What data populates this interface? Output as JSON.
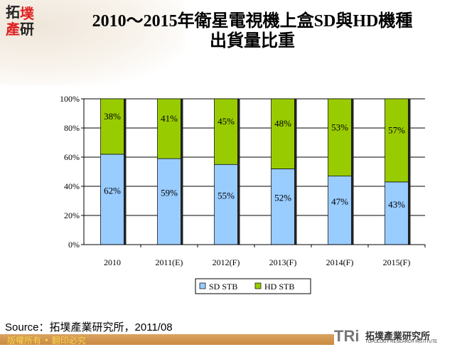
{
  "header": {
    "title_line1": "2010～2015年衛星電視機上盒SD與HD機種",
    "title_line2": "出貨量比重",
    "logo_text": "拓墣產研"
  },
  "chart_data": {
    "type": "bar",
    "stacked": true,
    "percent": true,
    "categories": [
      "2010",
      "2011(E)",
      "2012(F)",
      "2013(F)",
      "2014(F)",
      "2015(F)"
    ],
    "series": [
      {
        "name": "SD STB",
        "values": [
          62,
          59,
          55,
          52,
          47,
          43
        ],
        "labels": [
          "62%",
          "59%",
          "55%",
          "52%",
          "47%",
          "43%"
        ],
        "color": "#99ccff"
      },
      {
        "name": "HD STB",
        "values": [
          38,
          41,
          45,
          48,
          53,
          57
        ],
        "labels": [
          "38%",
          "41%",
          "45%",
          "48%",
          "53%",
          "57%"
        ],
        "color": "#99cc00"
      }
    ],
    "yticks": [
      "0%",
      "20%",
      "40%",
      "60%",
      "80%",
      "100%"
    ],
    "ylim": [
      0,
      100
    ],
    "grid": true,
    "legend": "bottom"
  },
  "footer": {
    "source": "Source：拓墣產業研究所，2011/08",
    "copyright": "版權所有 • 翻印必究",
    "tri_logo": "TRi",
    "tri_name": "拓墣產業研究所",
    "tri_english": "TOPOLOGY RESEARCH INSTITUTE"
  }
}
